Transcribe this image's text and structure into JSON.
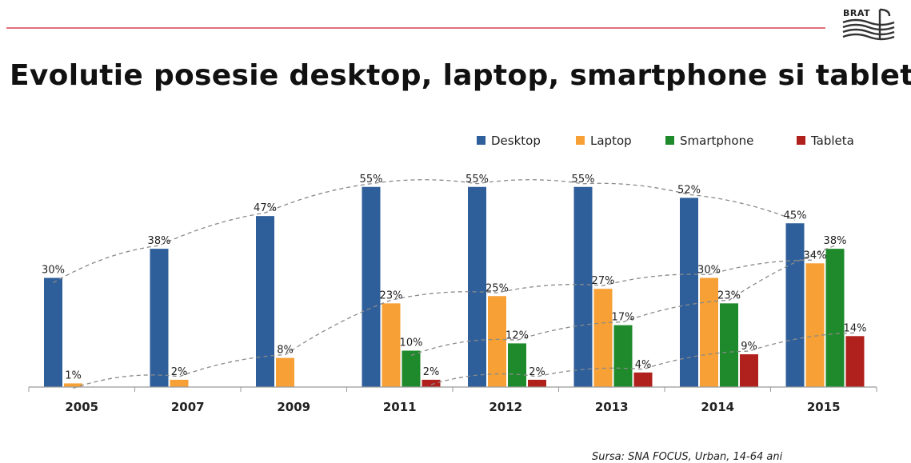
{
  "header": {
    "logo_text": "BRAT",
    "title": "Evolutie posesie desktop, laptop, smartphone si tableta"
  },
  "source": "Sursa: SNA FOCUS, Urban, 14-64 ani",
  "chart_data": {
    "type": "bar",
    "categories": [
      "2005",
      "2007",
      "2009",
      "2011",
      "2012",
      "2013",
      "2014",
      "2015"
    ],
    "series": [
      {
        "name": "Desktop",
        "color": "#2f5f9a",
        "values": [
          30,
          38,
          47,
          55,
          55,
          55,
          52,
          45
        ],
        "labels": [
          "30%",
          "38%",
          "47%",
          "55%",
          "55%",
          "55%",
          "52%",
          "45%"
        ]
      },
      {
        "name": "Laptop",
        "color": "#f7a035",
        "values": [
          1,
          2,
          8,
          23,
          25,
          27,
          30,
          34
        ],
        "labels": [
          "1%",
          "2%",
          "8%",
          "23%",
          "25%",
          "27%",
          "30%",
          "34%"
        ]
      },
      {
        "name": "Smartphone",
        "color": "#1f8a2c",
        "values": [
          null,
          null,
          null,
          10,
          12,
          17,
          23,
          38
        ],
        "labels": [
          "",
          "",
          "",
          "10%",
          "12%",
          "17%",
          "23%",
          "38%"
        ]
      },
      {
        "name": "Tableta",
        "color": "#b0201c",
        "values": [
          null,
          null,
          null,
          2,
          2,
          4,
          9,
          14
        ],
        "labels": [
          "",
          "",
          "",
          "2%",
          "2%",
          "4%",
          "9%",
          "14%"
        ]
      }
    ],
    "legend_position": "top-right",
    "trendlines": "dashed",
    "grid": false
  }
}
